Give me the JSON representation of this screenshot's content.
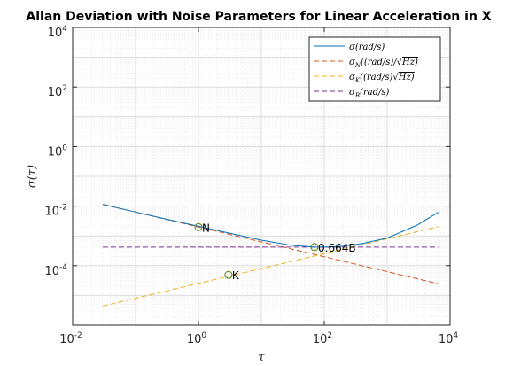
{
  "chart_data": {
    "type": "line",
    "title": "Allan Deviation with Noise Parameters for Linear Acceleration in X",
    "xlabel": "τ",
    "ylabel": "σ(τ)",
    "xscale": "log",
    "yscale": "log",
    "xlim": [
      0.01,
      10000
    ],
    "ylim": [
      1e-06,
      10000
    ],
    "grid": true,
    "minor_grid": true,
    "legend_position": "top-right",
    "x_ticks": [
      {
        "base": "10",
        "exp": "-2"
      },
      {
        "base": "10",
        "exp": "0"
      },
      {
        "base": "10",
        "exp": "2"
      },
      {
        "base": "10",
        "exp": "4"
      }
    ],
    "y_ticks": [
      {
        "base": "10",
        "exp": "-4"
      },
      {
        "base": "10",
        "exp": "-2"
      },
      {
        "base": "10",
        "exp": "0"
      },
      {
        "base": "10",
        "exp": "2"
      },
      {
        "base": "10",
        "exp": "4"
      }
    ],
    "series": [
      {
        "name": "σ(rad/s)",
        "color": "#0072BD",
        "style": "solid",
        "x": [
          0.03,
          0.1,
          0.3,
          1,
          3,
          10,
          30,
          70,
          100,
          200,
          400,
          1000,
          3000,
          6500
        ],
        "y": [
          0.0115,
          0.0063,
          0.0037,
          0.0021,
          0.00125,
          0.00072,
          0.00048,
          0.00042,
          0.00042,
          0.00045,
          0.00055,
          0.00085,
          0.0023,
          0.0062
        ]
      },
      {
        "name": "σN((rad/s)/√Hz)",
        "color": "#D95319",
        "style": "dashed",
        "x": [
          0.03,
          6500
        ],
        "y": [
          0.0115,
          2.47e-05
        ]
      },
      {
        "name": "σK((rad/s)√Hz)",
        "color": "#EDB120",
        "style": "dashed",
        "x": [
          0.03,
          6500
        ],
        "y": [
          4.4e-06,
          0.00204
        ]
      },
      {
        "name": "σB(rad/s)",
        "color": "#7E2F8E",
        "style": "dashed",
        "x": [
          0.03,
          6500
        ],
        "y": [
          0.00042,
          0.00042
        ]
      }
    ],
    "legend": [
      {
        "main": "σ(rad/s)",
        "sub": "",
        "rest": "",
        "sqrt": ""
      },
      {
        "main": "σ",
        "sub": "N",
        "rest": "((rad/s)/√",
        "sqrt": "Hz)"
      },
      {
        "main": "σ",
        "sub": "K",
        "rest": "((rad/s)√",
        "sqrt": "Hz)"
      },
      {
        "main": "σ",
        "sub": "B",
        "rest": "(rad/s)",
        "sqrt": ""
      }
    ],
    "annotations": [
      {
        "label": "N",
        "x": 1,
        "y": 0.00197,
        "marker_color": "#6b8e23"
      },
      {
        "label": "K",
        "x": 3,
        "y": 4.9e-05,
        "marker_color": "#6b8e23"
      },
      {
        "label": "0.664B",
        "x": 70,
        "y": 0.00042,
        "marker_color": "#6b8e23"
      }
    ]
  }
}
